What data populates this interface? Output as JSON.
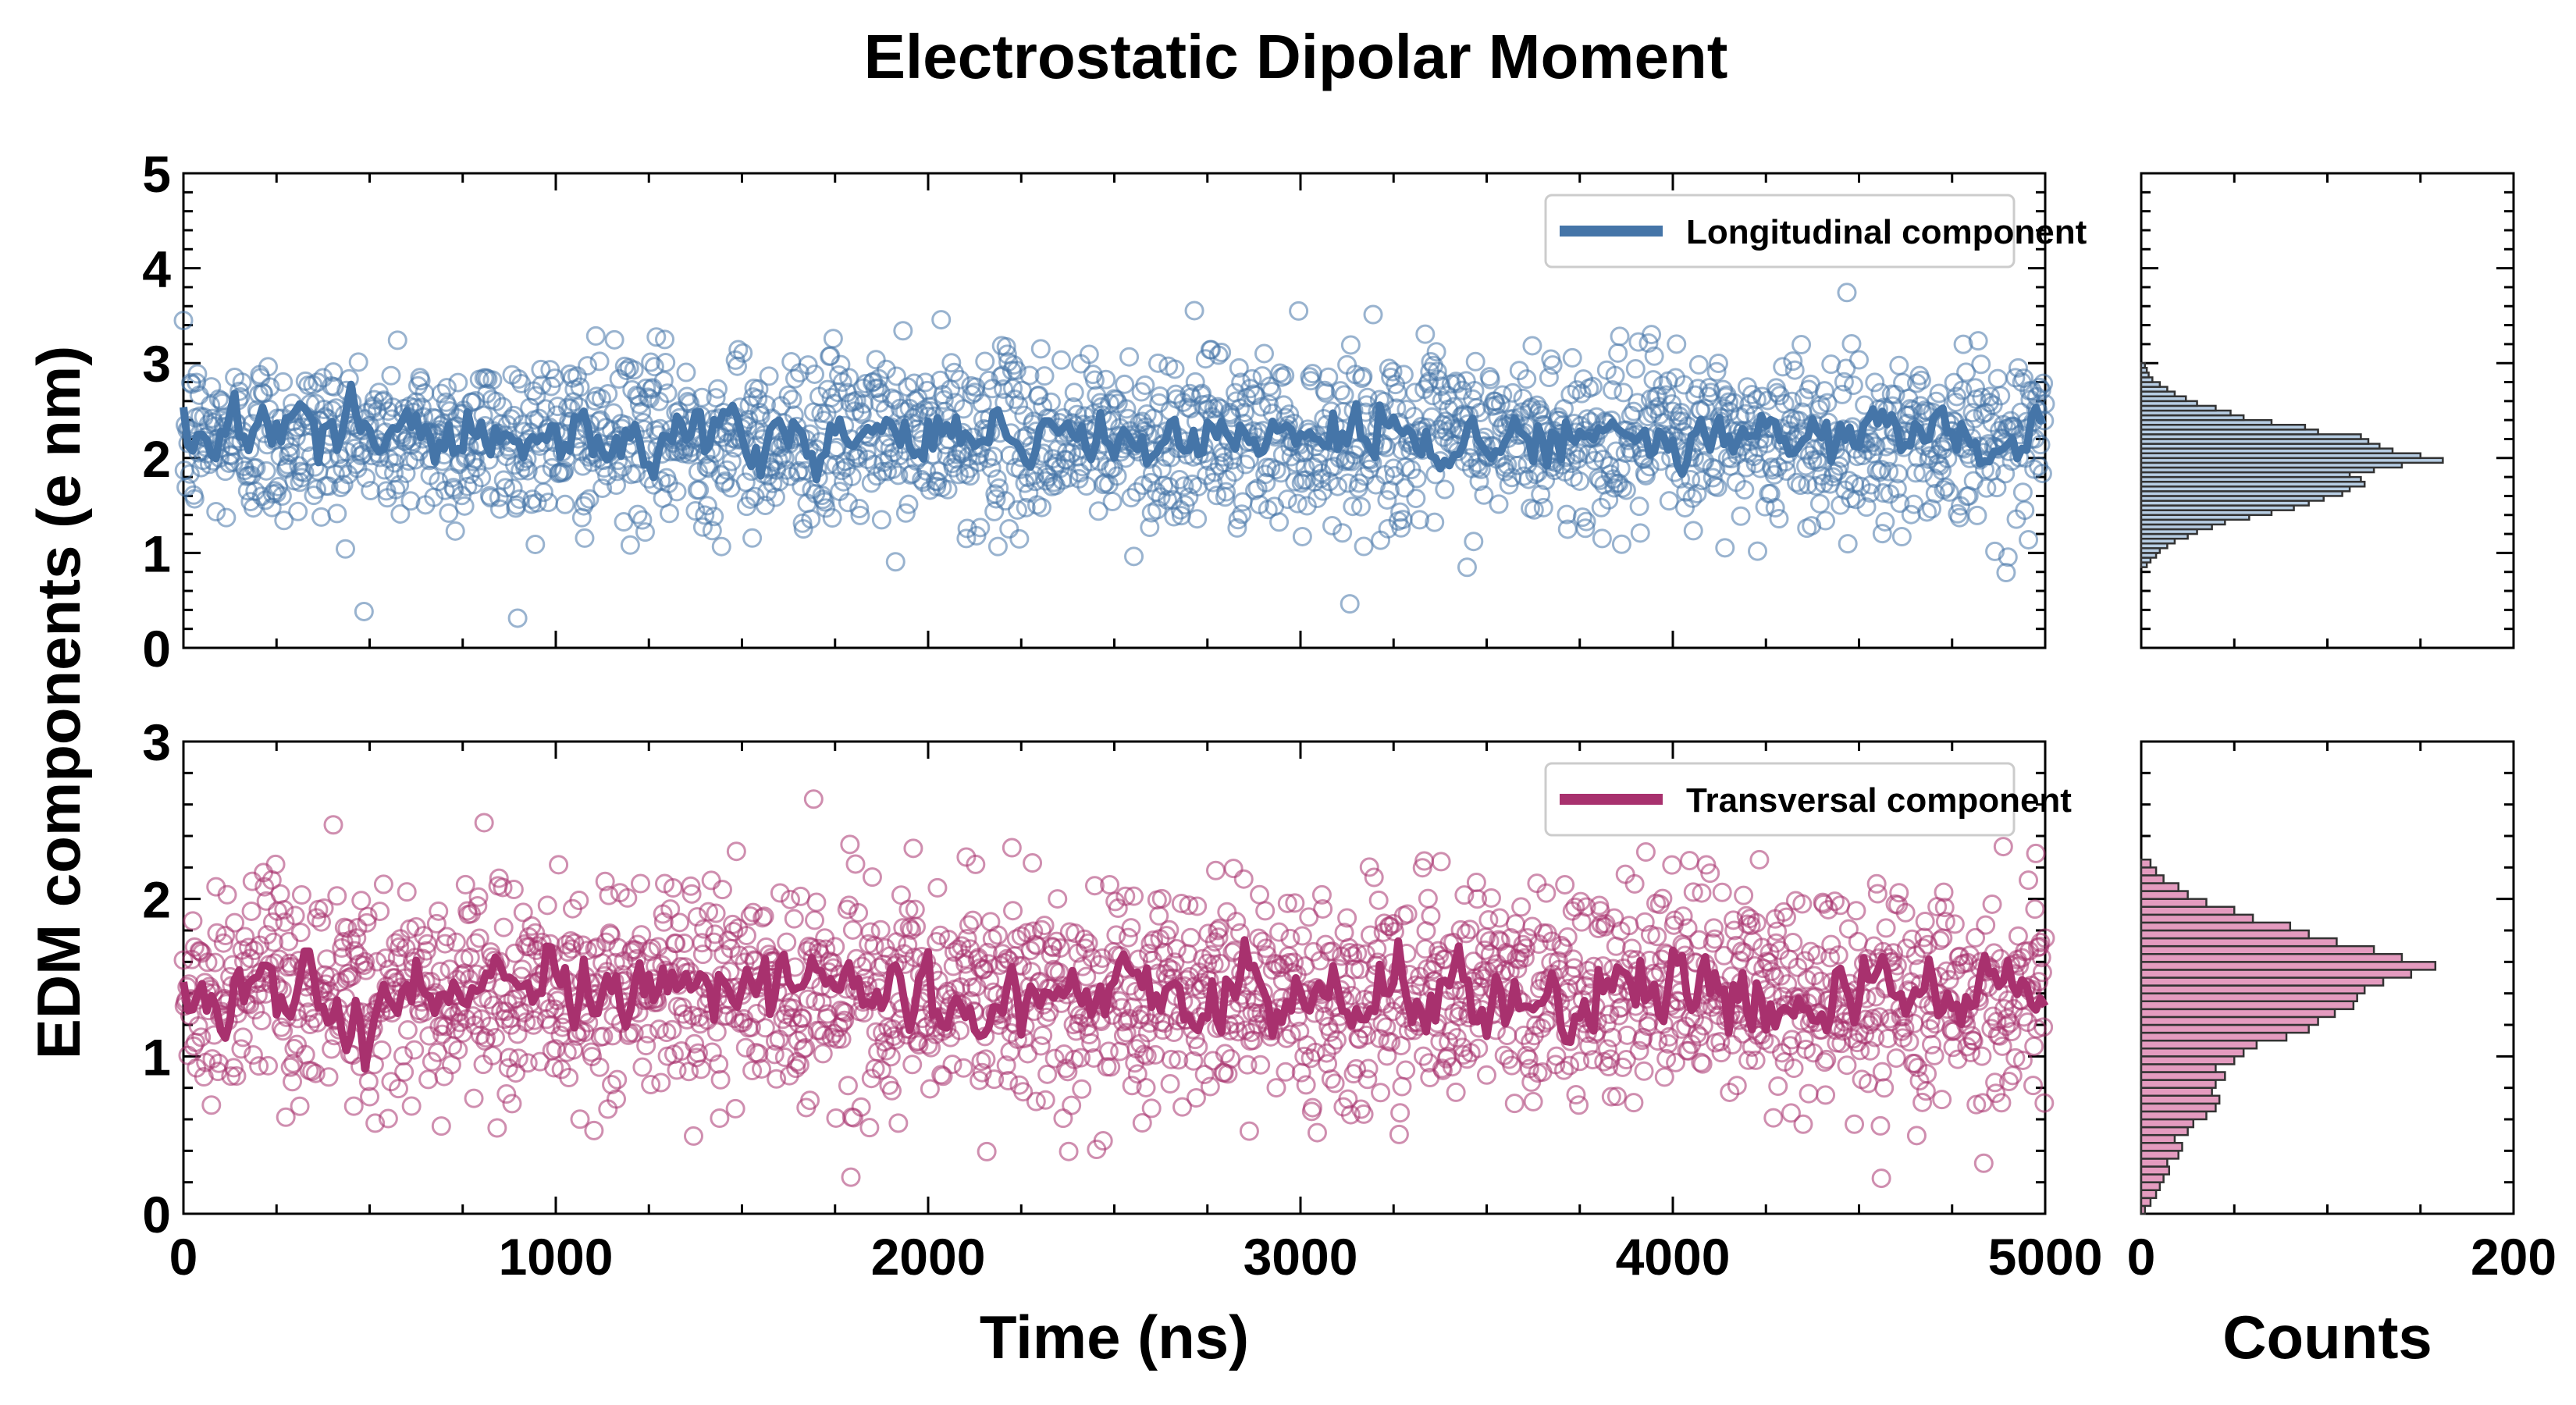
{
  "chart_data": {
    "type": "scatter",
    "title": "Electrostatic Dipolar Moment",
    "shared_ylabel": "EDM components (e nm)",
    "panels": [
      {
        "id": "longitudinal",
        "xlabel": "",
        "xlim": [
          0,
          5000
        ],
        "ylim": [
          0,
          5
        ],
        "xticks": [
          0,
          1000,
          2000,
          3000,
          4000,
          5000
        ],
        "yticks": [
          0,
          1,
          2,
          3,
          4,
          5
        ],
        "show_xtick_labels": false,
        "legend": "top-right",
        "series": [
          {
            "name": "Longitudinal component",
            "color": "#4575a8",
            "mean": 2.2,
            "sd": 0.45,
            "smooth_mean": 2.2,
            "smooth_sd": 0.25,
            "x_step": 2.5
          }
        ]
      },
      {
        "id": "transversal",
        "xlabel": "Time (ns)",
        "xlim": [
          0,
          5000
        ],
        "ylim": [
          0,
          3
        ],
        "xticks": [
          0,
          1000,
          2000,
          3000,
          4000,
          5000
        ],
        "yticks": [
          0,
          1,
          2,
          3
        ],
        "show_xtick_labels": true,
        "legend": "top-right",
        "series": [
          {
            "name": "Transversal component",
            "color": "#a8316e",
            "mean": 1.4,
            "sd": 0.35,
            "smooth_mean": 1.4,
            "smooth_sd": 0.2,
            "x_step": 2.5
          }
        ]
      }
    ],
    "histograms": [
      {
        "id": "longitudinal-hist",
        "xlabel": "",
        "xlim": [
          0,
          200
        ],
        "ylim": [
          0,
          5
        ],
        "xticks": [
          0,
          200
        ],
        "show_xtick_labels": false,
        "color": "#b7cde3",
        "edge": "#333333",
        "bin_width": 0.05,
        "bin_start": 0.85,
        "counts": [
          3,
          5,
          8,
          10,
          14,
          18,
          25,
          30,
          38,
          45,
          58,
          70,
          82,
          90,
          98,
          108,
          112,
          120,
          118,
          112,
          125,
          140,
          162,
          150,
          135,
          128,
          122,
          118,
          95,
          88,
          70,
          55,
          48,
          40,
          30,
          24,
          18,
          14,
          10,
          6,
          4,
          3,
          2
        ]
      },
      {
        "id": "transversal-hist",
        "xlabel": "Counts",
        "xlim": [
          0,
          200
        ],
        "ylim": [
          0,
          3
        ],
        "xticks": [
          0,
          200
        ],
        "show_xtick_labels": true,
        "color": "#e49bbf",
        "edge": "#333333",
        "bin_width": 0.05,
        "bin_start": 0.0,
        "counts": [
          2,
          5,
          8,
          10,
          12,
          15,
          14,
          20,
          22,
          18,
          25,
          28,
          35,
          40,
          42,
          38,
          40,
          45,
          40,
          50,
          55,
          62,
          78,
          90,
          95,
          104,
          114,
          116,
          120,
          130,
          145,
          158,
          140,
          125,
          105,
          90,
          80,
          60,
          50,
          35,
          25,
          20,
          12,
          8,
          5
        ]
      }
    ]
  }
}
